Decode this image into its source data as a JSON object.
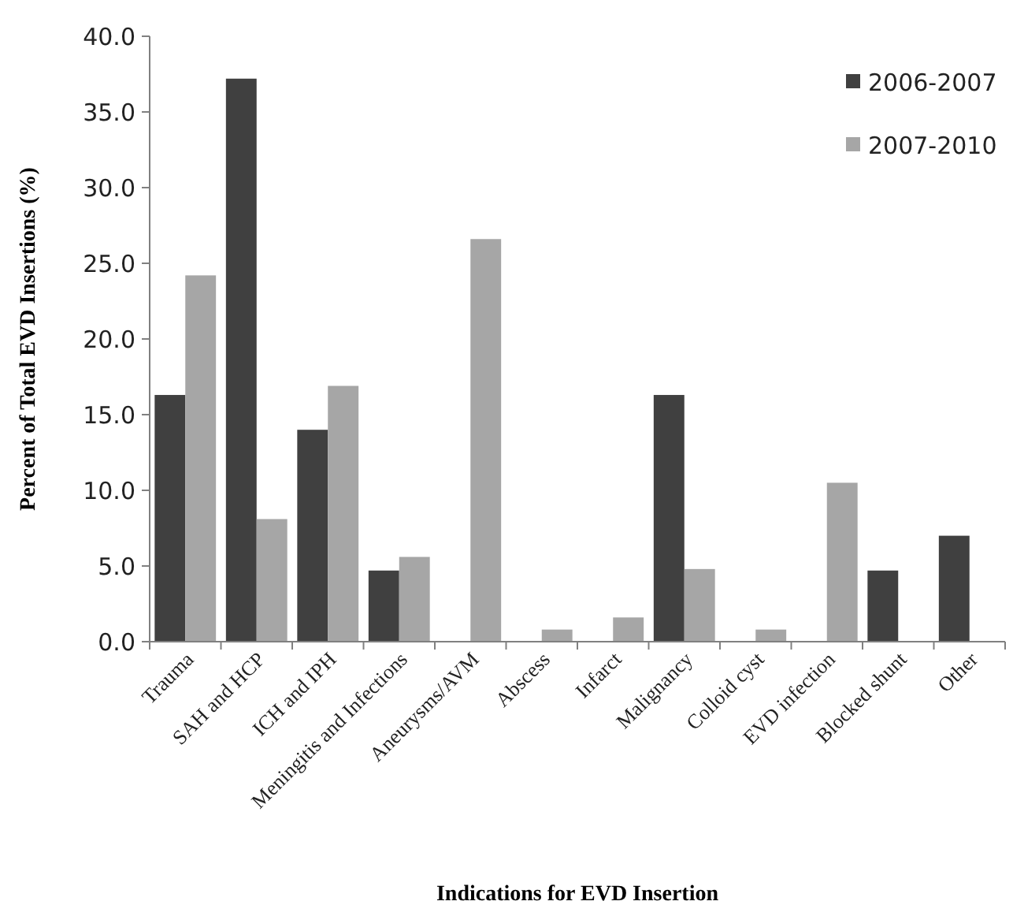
{
  "chart_data": {
    "type": "bar",
    "xlabel": "Indications for EVD Insertion",
    "ylabel": "Percent of Total EVD Insertions (%)",
    "categories": [
      "Trauma",
      "SAH and HCP",
      "ICH and IPH",
      "Meningitis and Infections",
      "Aneurysms/AVM",
      "Abscess",
      "Infarct",
      "Malignancy",
      "Colloid cyst",
      "EVD infection",
      "Blocked shunt",
      "Other"
    ],
    "series": [
      {
        "name": "2006-2007",
        "color": "#404040",
        "values": [
          16.3,
          37.2,
          14.0,
          4.7,
          0,
          0,
          0,
          16.3,
          0,
          0,
          4.7,
          7.0
        ]
      },
      {
        "name": "2007-2010",
        "color": "#a6a6a6",
        "values": [
          24.2,
          8.1,
          16.9,
          5.6,
          26.6,
          0.8,
          1.6,
          4.8,
          0.8,
          10.5,
          0,
          0
        ]
      }
    ],
    "ylim": [
      0,
      40
    ],
    "yticks": [
      {
        "value": 0,
        "label": "0.0"
      },
      {
        "value": 5,
        "label": "5.0"
      },
      {
        "value": 10,
        "label": "10.0"
      },
      {
        "value": 15,
        "label": "15.0"
      },
      {
        "value": 20,
        "label": "20.0"
      },
      {
        "value": 25,
        "label": "25.0"
      },
      {
        "value": 30,
        "label": "30.0"
      },
      {
        "value": 35,
        "label": "35.0"
      },
      {
        "value": 40,
        "label": "40.0"
      }
    ],
    "grid": false,
    "legend": "top right"
  }
}
